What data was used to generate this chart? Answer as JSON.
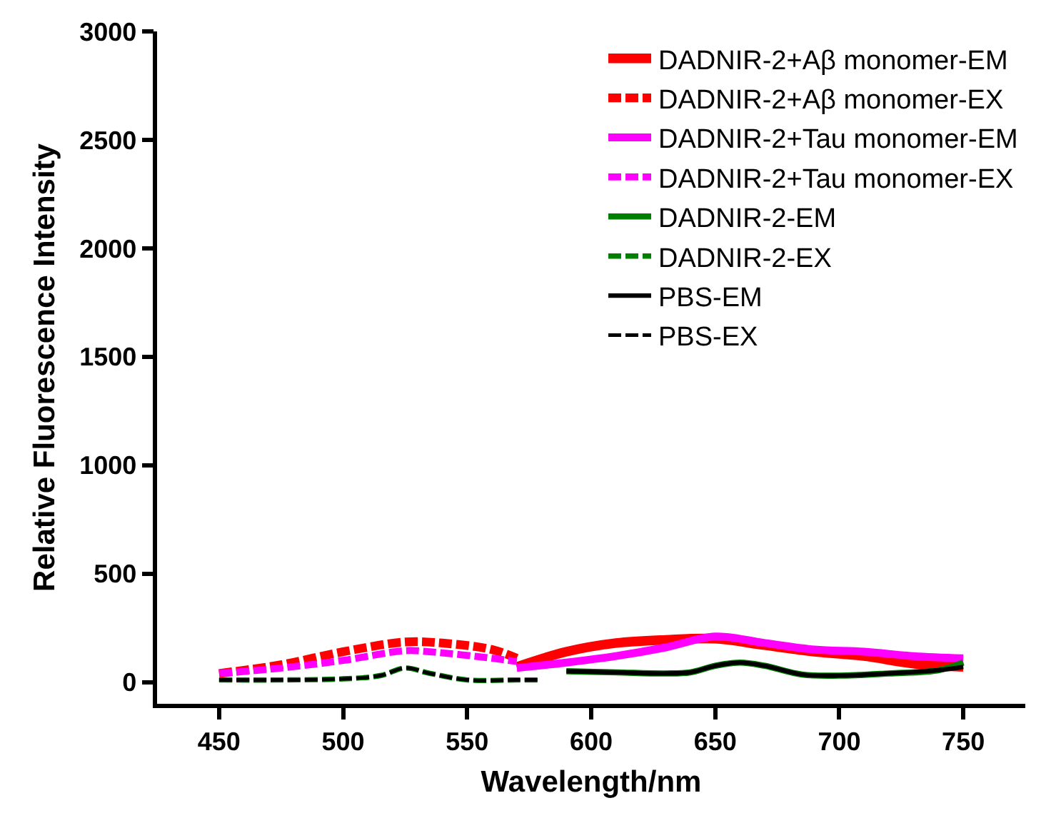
{
  "chart_data": {
    "type": "line",
    "xlabel": "Wavelength/nm",
    "ylabel": "Relative Fluorescence Intensity",
    "xlim": [
      425,
      775
    ],
    "xticks": [
      450,
      500,
      550,
      600,
      650,
      700,
      750
    ],
    "ylim": [
      -100,
      3000
    ],
    "yticks": [
      0,
      500,
      1000,
      1500,
      2000,
      2500,
      3000
    ],
    "grid": false,
    "legend": "top right",
    "marker": "none",
    "series": [
      {
        "name": "DADNIR-2+Aβ monomer-EM",
        "color": "#ff0000",
        "line_style": "solid",
        "x": [
          570,
          590,
          610,
          630,
          650,
          670,
          690,
          710,
          730,
          750
        ],
        "values": [
          70,
          140,
          180,
          195,
          200,
          170,
          140,
          120,
          85,
          70
        ]
      },
      {
        "name": "DADNIR-2+Aβ monomer-EX",
        "color": "#ff0000",
        "line_style": "dashed",
        "x": [
          450,
          475,
          500,
          525,
          540,
          560,
          570
        ],
        "values": [
          40,
          80,
          140,
          185,
          180,
          150,
          110
        ]
      },
      {
        "name": "DADNIR-2+Tau monomer-EM",
        "color": "#ff00ff",
        "line_style": "solid",
        "x": [
          570,
          590,
          610,
          630,
          650,
          670,
          690,
          710,
          730,
          750
        ],
        "values": [
          65,
          90,
          120,
          160,
          210,
          180,
          150,
          140,
          120,
          110
        ]
      },
      {
        "name": "DADNIR-2+Tau monomer-EX",
        "color": "#ff00ff",
        "line_style": "dashed",
        "x": [
          450,
          475,
          500,
          525,
          535,
          560,
          570
        ],
        "values": [
          40,
          65,
          100,
          145,
          140,
          110,
          95
        ]
      },
      {
        "name": "DADNIR-2-EM",
        "color": "#008000",
        "line_style": "solid",
        "x": [
          590,
          610,
          630,
          640,
          650,
          660,
          670,
          685,
          700,
          720,
          740,
          750
        ],
        "values": [
          50,
          45,
          40,
          45,
          75,
          90,
          75,
          35,
          30,
          40,
          55,
          90
        ]
      },
      {
        "name": "DADNIR-2-EX",
        "color": "#008000",
        "line_style": "dashed",
        "x": [
          450,
          475,
          500,
          515,
          525,
          535,
          550,
          570,
          580
        ],
        "values": [
          10,
          10,
          15,
          30,
          65,
          40,
          10,
          10,
          10
        ]
      },
      {
        "name": "PBS-EM",
        "color": "#000000",
        "line_style": "solid",
        "x": [
          590,
          610,
          630,
          640,
          650,
          660,
          670,
          685,
          700,
          720,
          740,
          750
        ],
        "values": [
          50,
          45,
          40,
          45,
          75,
          90,
          75,
          35,
          30,
          40,
          55,
          70
        ]
      },
      {
        "name": "PBS-EX",
        "color": "#000000",
        "line_style": "dashed",
        "x": [
          450,
          475,
          500,
          515,
          525,
          535,
          550,
          570,
          580
        ],
        "values": [
          10,
          10,
          15,
          30,
          65,
          40,
          10,
          10,
          10
        ]
      }
    ]
  }
}
